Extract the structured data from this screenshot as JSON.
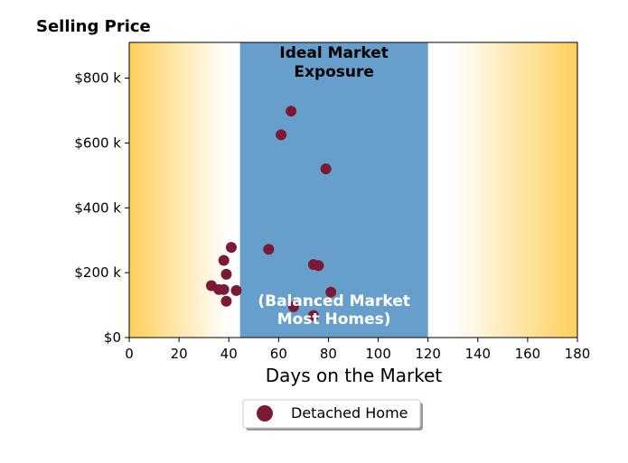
{
  "chart_data": {
    "type": "scatter",
    "title": "Selling Price",
    "xlabel": "Days on the Market",
    "ylabel": "",
    "xlim": [
      0,
      180
    ],
    "ylim": [
      0,
      910000
    ],
    "x_ticks": [
      0,
      20,
      40,
      60,
      80,
      100,
      120,
      140,
      160,
      180
    ],
    "x_tick_labels": [
      "0",
      "20",
      "40",
      "60",
      "80",
      "100",
      "120",
      "140",
      "160",
      "180"
    ],
    "y_ticks": [
      0,
      200000,
      400000,
      600000,
      800000
    ],
    "y_tick_labels": [
      "$0",
      "$200 k",
      "$400 k",
      "$600 k",
      "$800 k"
    ],
    "grid": false,
    "legend_position": "bottom-center",
    "bands": [
      {
        "from": 44.5,
        "to": 120,
        "color": "#679fcc",
        "label_top": "Ideal Market\nExposure",
        "label_bottom": "(Balanced Market\nMost Homes)"
      }
    ],
    "background_gradient": {
      "edge_color": "#ffcf5c",
      "center_color": "#ffffff"
    },
    "series": [
      {
        "name": "Detached Home",
        "color": "#7a1a35",
        "points": [
          {
            "x": 33,
            "y": 160000
          },
          {
            "x": 36,
            "y": 148000
          },
          {
            "x": 38,
            "y": 148000
          },
          {
            "x": 38,
            "y": 238000
          },
          {
            "x": 39,
            "y": 195000
          },
          {
            "x": 39,
            "y": 112000
          },
          {
            "x": 41,
            "y": 278000
          },
          {
            "x": 43,
            "y": 145000
          },
          {
            "x": 56,
            "y": 272000
          },
          {
            "x": 61,
            "y": 625000
          },
          {
            "x": 65,
            "y": 698000
          },
          {
            "x": 66,
            "y": 95000
          },
          {
            "x": 74,
            "y": 225000
          },
          {
            "x": 74,
            "y": 68000
          },
          {
            "x": 76,
            "y": 222000
          },
          {
            "x": 79,
            "y": 520000
          },
          {
            "x": 81,
            "y": 140000
          }
        ]
      }
    ]
  }
}
